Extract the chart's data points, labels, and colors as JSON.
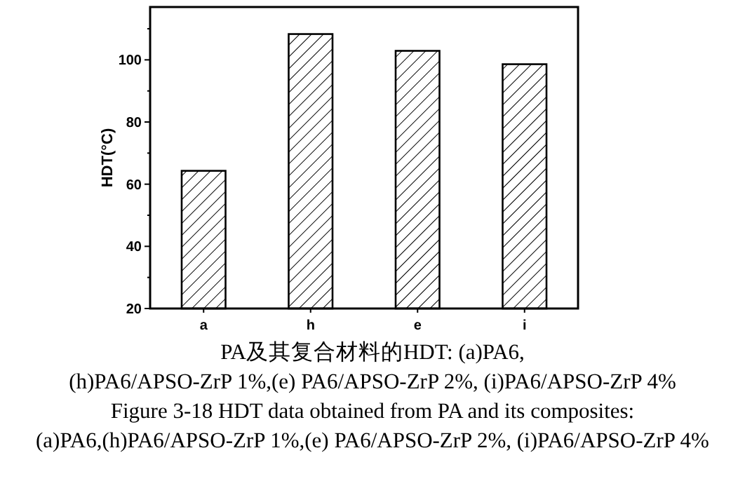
{
  "chart_data": {
    "type": "bar",
    "ylabel": "HDT(°C)",
    "categories": [
      "a",
      "h",
      "e",
      "i"
    ],
    "values": [
      64.3,
      108.3,
      102.9,
      98.6
    ],
    "color": "#000000",
    "ylim": [
      20,
      117
    ],
    "yticks": [
      20,
      40,
      60,
      80,
      100
    ],
    "grid": false,
    "annotations": [
      "PA及其复合材料的HDT: (a)PA6,",
      "(h)PA6/APSO-ZrP 1%,(e) PA6/APSO-ZrP 2%, (i)PA6/APSO-ZrP 4%",
      "Figure 3-18 HDT data obtained from PA and its composites:",
      "(a)PA6,(h)PA6/APSO-ZrP 1%,(e) PA6/APSO-ZrP 2%, (i)PA6/APSO-ZrP 4%"
    ]
  }
}
